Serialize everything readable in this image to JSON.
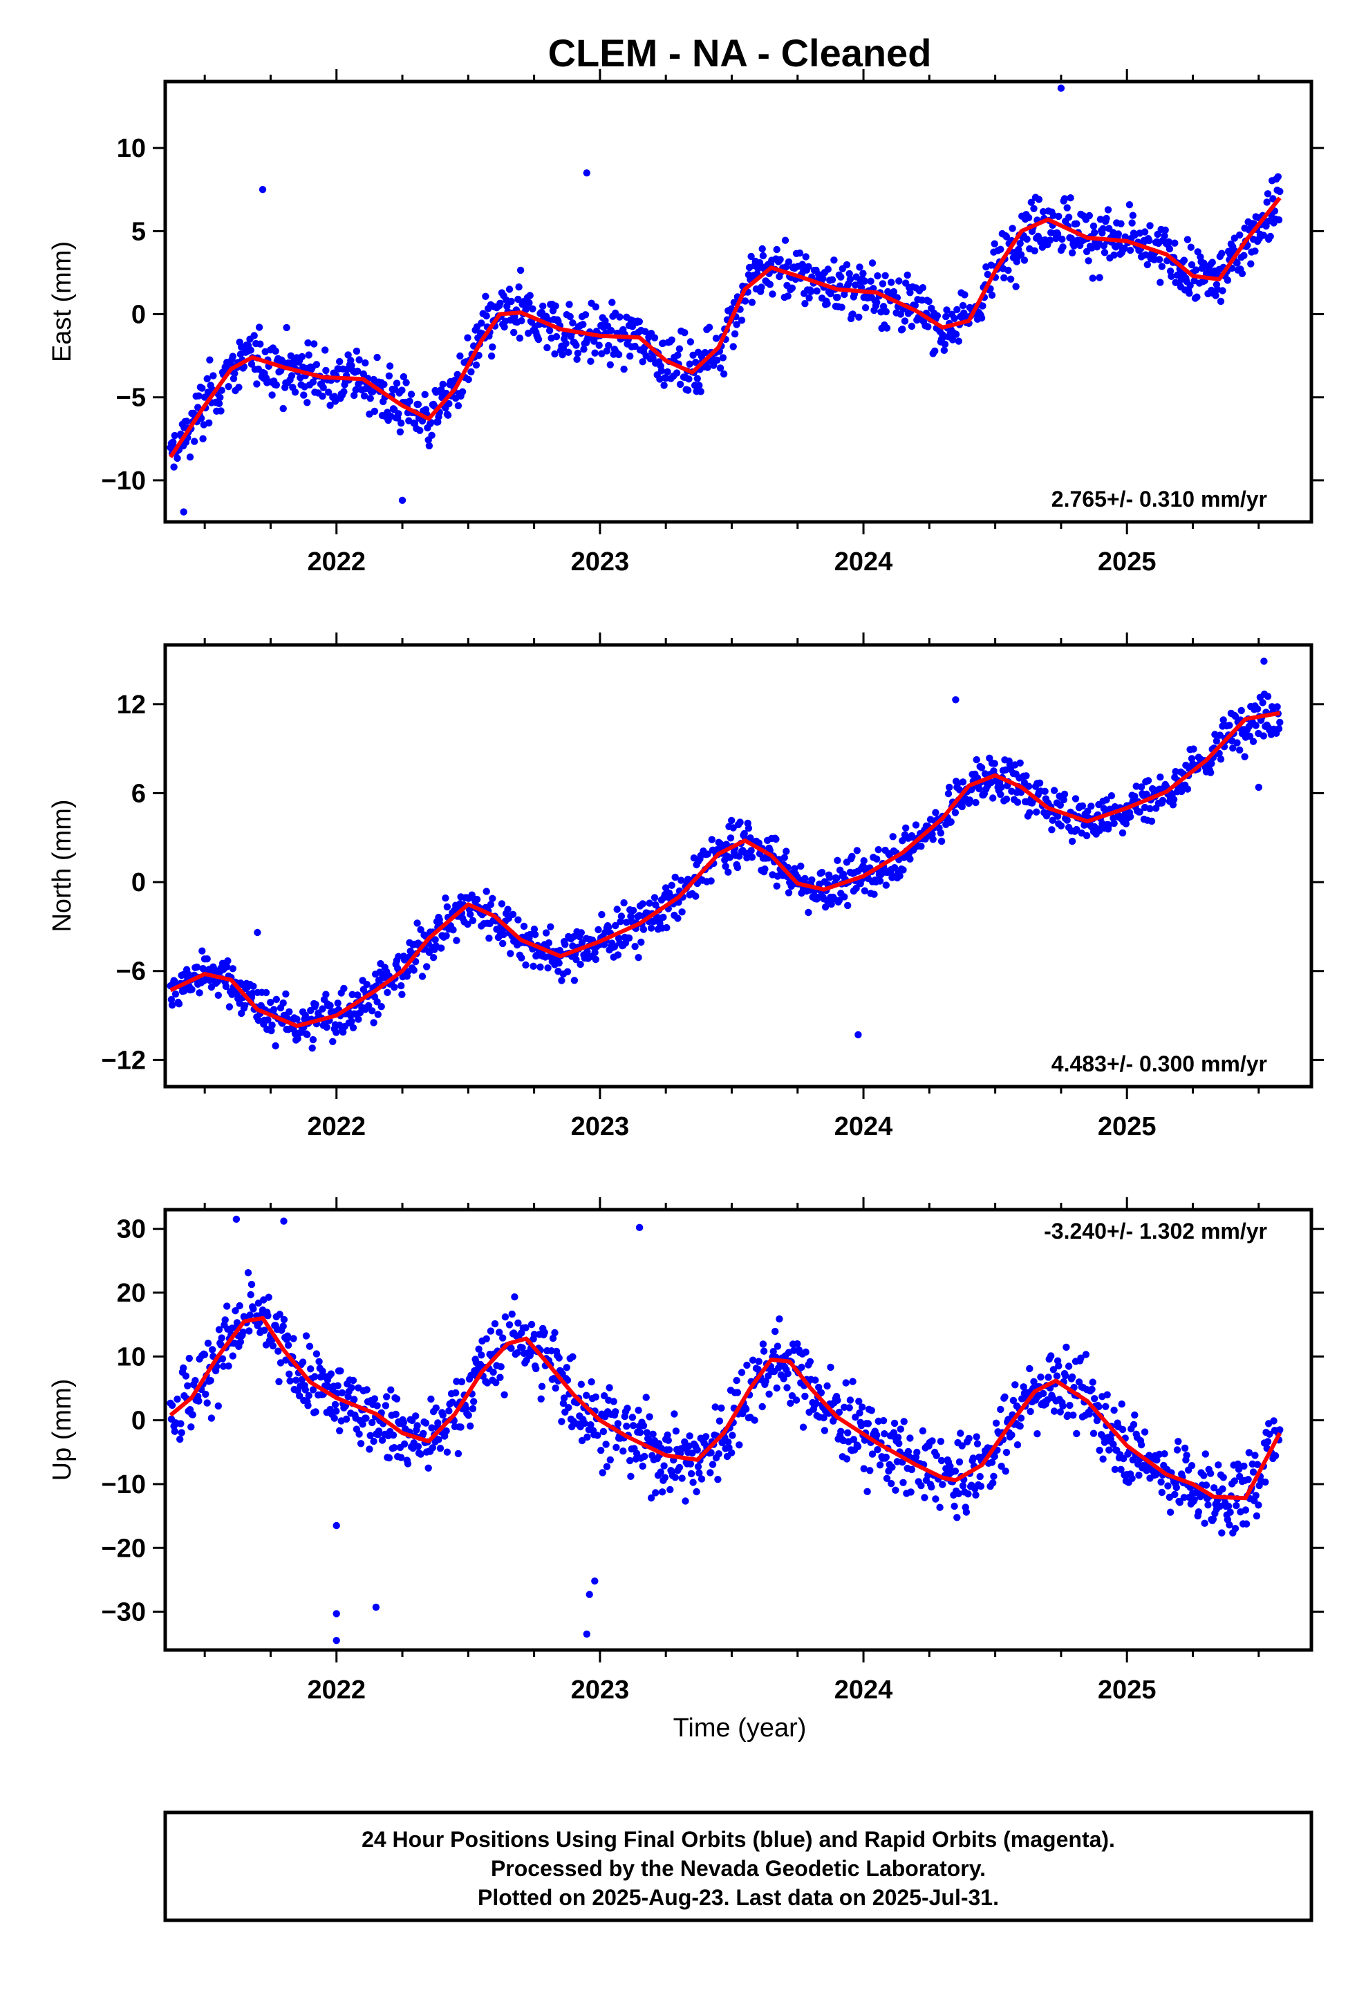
{
  "title": "CLEM  - NA - Cleaned",
  "xlabel": "Time (year)",
  "footer": {
    "line1": "24 Hour Positions Using Final Orbits (blue) and Rapid Orbits (magenta).",
    "line2": "Processed by the Nevada Geodetic Laboratory.",
    "line3": "Plotted on 2025-Aug-23. Last data on 2025-Jul-31."
  },
  "colors": {
    "points": "#0000ff",
    "fit": "#ff0000",
    "frame": "#000000"
  },
  "chart_data": [
    {
      "type": "scatter",
      "component": "east",
      "ylabel": "East (mm)",
      "rate_label": "2.765+/- 0.310 mm/yr",
      "xlim": [
        2021.35,
        2025.7
      ],
      "ylim": [
        -12.5,
        14
      ],
      "xticks": [
        2022,
        2023,
        2024,
        2025
      ],
      "yticks": [
        -10,
        -5,
        0,
        5,
        10
      ],
      "ytick_labels": [
        "−10",
        "−5",
        "0",
        "5",
        "10"
      ],
      "fit": {
        "x": [
          2021.37,
          2021.5,
          2021.6,
          2021.68,
          2021.8,
          2021.95,
          2022.1,
          2022.25,
          2022.35,
          2022.45,
          2022.55,
          2022.62,
          2022.7,
          2022.85,
          2023.0,
          2023.15,
          2023.25,
          2023.35,
          2023.45,
          2023.55,
          2023.65,
          2023.75,
          2023.9,
          2024.05,
          2024.2,
          2024.3,
          2024.4,
          2024.5,
          2024.6,
          2024.7,
          2024.85,
          2025.0,
          2025.15,
          2025.25,
          2025.35,
          2025.45,
          2025.58
        ],
        "y": [
          -8.6,
          -5.5,
          -3.3,
          -2.6,
          -3.2,
          -3.8,
          -3.9,
          -5.5,
          -6.3,
          -4.5,
          -1.6,
          0.0,
          0.1,
          -0.9,
          -1.3,
          -1.4,
          -2.8,
          -3.5,
          -2.0,
          1.5,
          2.8,
          2.3,
          1.5,
          1.3,
          0.2,
          -0.8,
          -0.4,
          2.6,
          5.0,
          5.7,
          4.6,
          4.4,
          3.6,
          2.3,
          2.1,
          4.4,
          7.0
        ]
      },
      "points_summary": "daily positions scattered about the fit (about ±2.5 mm); notable outliers near 2021.7 (7.5), 2022.95 (8.5), 2024.75 (13.6)"
    },
    {
      "type": "scatter",
      "component": "north",
      "ylabel": "North (mm)",
      "rate_label": "4.483+/- 0.300 mm/yr",
      "xlim": [
        2021.35,
        2025.7
      ],
      "ylim": [
        -13.8,
        16
      ],
      "xticks": [
        2022,
        2023,
        2024,
        2025
      ],
      "yticks": [
        -12,
        -6,
        0,
        6,
        12
      ],
      "ytick_labels": [
        "−12",
        "−6",
        "0",
        "6",
        "12"
      ],
      "fit": {
        "x": [
          2021.37,
          2021.5,
          2021.6,
          2021.7,
          2021.85,
          2022.0,
          2022.15,
          2022.25,
          2022.35,
          2022.5,
          2022.6,
          2022.7,
          2022.85,
          2023.0,
          2023.15,
          2023.3,
          2023.45,
          2023.55,
          2023.65,
          2023.75,
          2023.85,
          2024.0,
          2024.15,
          2024.3,
          2024.4,
          2024.5,
          2024.6,
          2024.7,
          2024.85,
          2025.0,
          2025.15,
          2025.3,
          2025.45,
          2025.58
        ],
        "y": [
          -7.3,
          -6.2,
          -6.6,
          -8.6,
          -9.7,
          -9.0,
          -7.3,
          -6.0,
          -3.8,
          -1.5,
          -2.3,
          -3.9,
          -5.0,
          -4.0,
          -2.8,
          -1.0,
          1.9,
          2.8,
          1.8,
          -0.1,
          -0.5,
          0.4,
          2.0,
          4.3,
          6.5,
          7.2,
          6.4,
          5.0,
          4.1,
          5.0,
          6.1,
          8.2,
          11.0,
          11.4
        ]
      },
      "points_summary": "daily positions scattered about the fit (about ±2 mm); notable outliers near 2023.98 (-10.3), 2024.35 (12.3), 2025.5 (14.9)"
    },
    {
      "type": "scatter",
      "component": "up",
      "ylabel": "Up (mm)",
      "rate_label": "-3.240+/- 1.302 mm/yr",
      "xlim": [
        2021.35,
        2025.7
      ],
      "ylim": [
        -36,
        33
      ],
      "xticks": [
        2022,
        2023,
        2024,
        2025
      ],
      "yticks": [
        -30,
        -20,
        -10,
        0,
        10,
        20,
        30
      ],
      "ytick_labels": [
        "−30",
        "−20",
        "−10",
        "0",
        "10",
        "20",
        "30"
      ],
      "fit": {
        "x": [
          2021.37,
          2021.45,
          2021.55,
          2021.65,
          2021.72,
          2021.8,
          2021.9,
          2022.0,
          2022.15,
          2022.25,
          2022.35,
          2022.45,
          2022.55,
          2022.65,
          2022.72,
          2022.8,
          2022.9,
          2023.0,
          2023.1,
          2023.25,
          2023.37,
          2023.47,
          2023.57,
          2023.65,
          2023.72,
          2023.8,
          2023.9,
          2024.05,
          2024.2,
          2024.3,
          2024.35,
          2024.45,
          2024.55,
          2024.65,
          2024.73,
          2024.85,
          2025.0,
          2025.15,
          2025.25,
          2025.33,
          2025.45,
          2025.58
        ],
        "y": [
          0.8,
          3.5,
          10.0,
          15.5,
          16.0,
          11.0,
          6.0,
          3.5,
          1.0,
          -2.0,
          -3.3,
          1.0,
          7.5,
          12.0,
          12.8,
          9.0,
          4.0,
          0.0,
          -2.5,
          -5.5,
          -6.2,
          -2.0,
          5.0,
          9.5,
          9.2,
          5.0,
          0.5,
          -3.5,
          -7.0,
          -9.0,
          -9.4,
          -7.0,
          -1.0,
          4.5,
          6.2,
          3.0,
          -4.0,
          -8.5,
          -10.0,
          -12.0,
          -12.2,
          -2.0
        ]
      },
      "points_summary": "daily positions scattered about the fit (about ±6 mm); notable outliers near 2022.0 (-34.5), 2022.95 (-33.5), 2023.15 (30.2), 2021.6 (31.5)"
    }
  ]
}
